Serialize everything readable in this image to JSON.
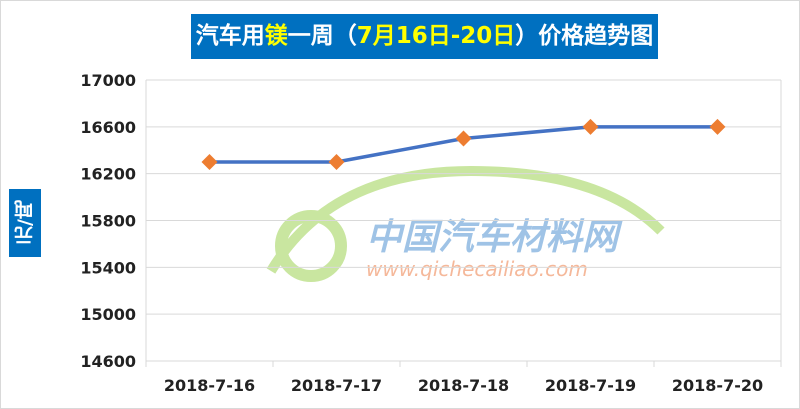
{
  "chart_data": {
    "type": "line",
    "title_parts": [
      "汽车用",
      "镁",
      "一周（",
      "7月16日-20日",
      "）价格趋势图"
    ],
    "ylabel": "元/吨",
    "xlabel": "",
    "categories": [
      "2018-7-16",
      "2018-7-17",
      "2018-7-18",
      "2018-7-19",
      "2018-7-20"
    ],
    "series": [
      {
        "values": [
          16300,
          16300,
          16500,
          16600,
          16600
        ],
        "color": "#4472c4",
        "marker_color": "#ed7d31",
        "marker": "diamond"
      }
    ],
    "ylim": [
      14600,
      17000
    ],
    "yticks": [
      14600,
      15000,
      15400,
      15800,
      16200,
      16600,
      17000
    ],
    "grid": true,
    "legend": "none"
  },
  "watermark": {
    "name": "中国汽车材料网",
    "url": "www.qichecailiao.com"
  },
  "colors": {
    "title_bg": "#0070c0",
    "highlight": "#ffff00"
  }
}
